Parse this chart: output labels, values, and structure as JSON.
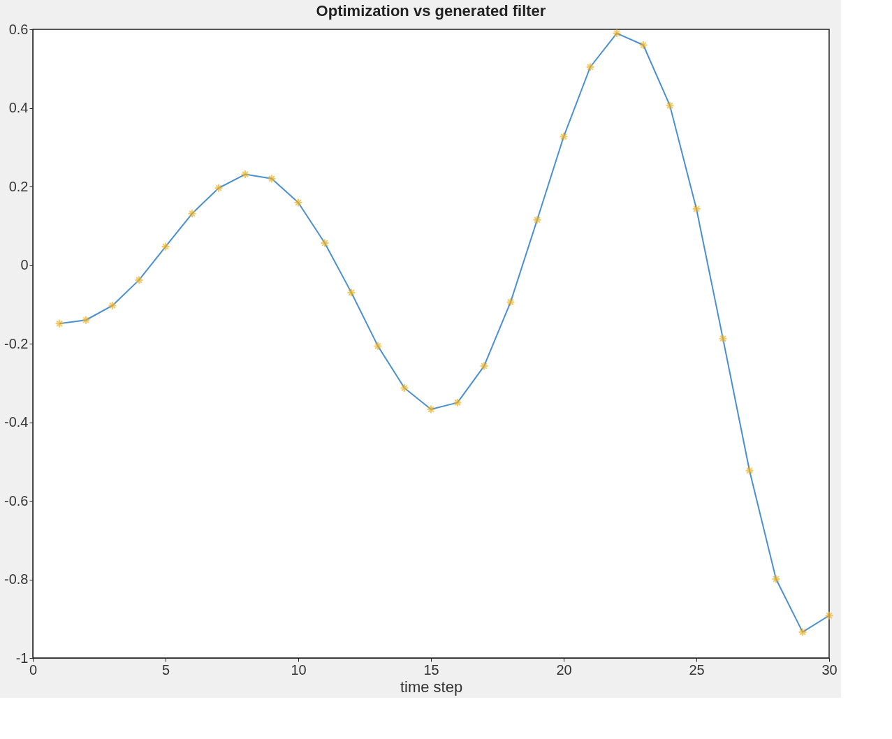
{
  "chart_data": {
    "type": "line",
    "title": "Optimization vs generated filter",
    "xlabel": "time step",
    "x": [
      1,
      2,
      3,
      4,
      5,
      6,
      7,
      8,
      9,
      10,
      11,
      12,
      13,
      14,
      15,
      16,
      17,
      18,
      19,
      20,
      21,
      22,
      23,
      24,
      25,
      26,
      27,
      28,
      29,
      30
    ],
    "series": [
      {
        "color": "#4a90d0",
        "marker": "none",
        "values": [
          -0.149,
          -0.14,
          -0.103,
          -0.038,
          0.047,
          0.131,
          0.196,
          0.231,
          0.22,
          0.159,
          0.056,
          -0.07,
          -0.206,
          -0.313,
          -0.367,
          -0.35,
          -0.257,
          -0.094,
          0.115,
          0.327,
          0.504,
          0.59,
          0.56,
          0.406,
          0.143,
          -0.187,
          -0.523,
          -0.799,
          -0.934,
          -0.892
        ]
      },
      {
        "type": "scatter",
        "color": "#edb120",
        "marker": "cross",
        "values": [
          -0.149,
          -0.14,
          -0.103,
          -0.038,
          0.047,
          0.131,
          0.196,
          0.231,
          0.22,
          0.159,
          0.056,
          -0.07,
          -0.206,
          -0.313,
          -0.367,
          -0.35,
          -0.257,
          -0.094,
          0.115,
          0.327,
          0.504,
          0.59,
          0.56,
          0.406,
          0.143,
          -0.187,
          -0.523,
          -0.799,
          -0.934,
          -0.892
        ]
      }
    ],
    "xlim": [
      0,
      30
    ],
    "xticks": [
      0,
      5,
      10,
      15,
      20,
      25,
      30
    ],
    "ylim": [
      -1,
      0.6
    ],
    "yticks": [
      -1,
      -0.8,
      -0.6,
      -0.4,
      -0.2,
      0,
      0.2,
      0.4,
      0.6
    ],
    "grid": false
  }
}
